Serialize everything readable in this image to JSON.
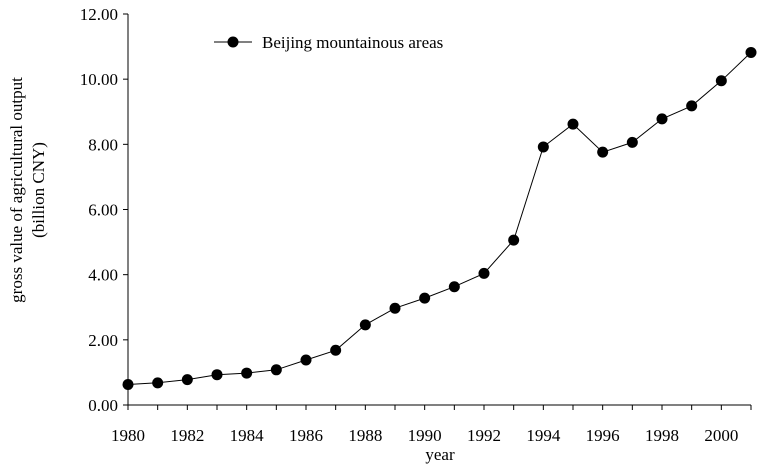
{
  "chart_data": {
    "type": "line",
    "x": [
      1980,
      1981,
      1982,
      1983,
      1984,
      1985,
      1986,
      1987,
      1988,
      1989,
      1990,
      1991,
      1992,
      1993,
      1994,
      1995,
      1996,
      1997,
      1998,
      1999,
      2000,
      2001
    ],
    "series": [
      {
        "name": "Beijing mountainous areas",
        "values": [
          0.63,
          0.68,
          0.78,
          0.93,
          0.98,
          1.08,
          1.38,
          1.68,
          2.46,
          2.97,
          3.28,
          3.63,
          4.04,
          5.06,
          7.92,
          8.62,
          7.76,
          8.06,
          8.78,
          9.18,
          9.95,
          10.82
        ],
        "color": "#000000",
        "marker": "filled-circle"
      }
    ],
    "title": "",
    "xlabel": "year",
    "ylabel_lines": [
      "gross value of agricultural output",
      "(billion CNY)"
    ],
    "xlim": [
      1980,
      2001
    ],
    "ylim": [
      0,
      12
    ],
    "xticks": [
      1980,
      1982,
      1984,
      1986,
      1988,
      1990,
      1992,
      1994,
      1996,
      1998,
      2000
    ],
    "yticks": [
      "0.00",
      "2.00",
      "4.00",
      "6.00",
      "8.00",
      "10.00",
      "12.00"
    ],
    "grid": false,
    "legend_position": "top-left"
  }
}
